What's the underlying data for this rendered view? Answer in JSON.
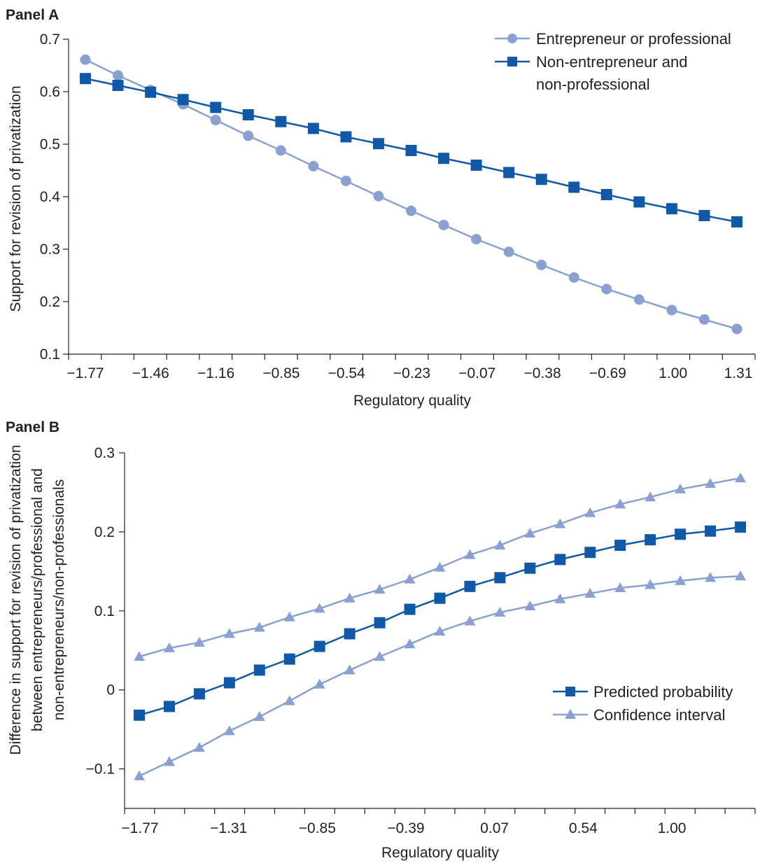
{
  "chart_data": [
    {
      "panel_title": "Panel A",
      "type": "line",
      "xlabel": "Regulatory quality",
      "ylabel": "Support for revision of privatization",
      "x_tick_labels": [
        "−1.77",
        "−1.46",
        "−1.16",
        "−0.85",
        "−0.54",
        "−0.23",
        "−0.07",
        "−0.38",
        "−0.69",
        "1.00",
        "1.31"
      ],
      "y_ticks": [
        0.1,
        0.2,
        0.3,
        0.4,
        0.5,
        0.6,
        0.7
      ],
      "y_tick_labels": [
        "0.1",
        "0.2",
        "0.3",
        "0.4",
        "0.5",
        "0.6",
        "0.7"
      ],
      "ylim": [
        0.1,
        0.7
      ],
      "legend_position": "top-right",
      "series": [
        {
          "name": "Entrepreneur or professional",
          "color": "#8aa0d0",
          "marker": "circle",
          "values": [
            0.661,
            0.631,
            0.603,
            0.576,
            0.546,
            0.516,
            0.488,
            0.458,
            0.43,
            0.401,
            0.373,
            0.346,
            0.319,
            0.295,
            0.27,
            0.246,
            0.224,
            0.204,
            0.184,
            0.166,
            0.148
          ]
        },
        {
          "name": "Non-entrepreneur and non-professional",
          "legend_lines": [
            "Non-entrepreneur and",
            "non-professional"
          ],
          "color": "#1059a8",
          "marker": "square",
          "values": [
            0.625,
            0.612,
            0.599,
            0.585,
            0.57,
            0.556,
            0.543,
            0.53,
            0.514,
            0.501,
            0.488,
            0.473,
            0.46,
            0.446,
            0.433,
            0.418,
            0.404,
            0.39,
            0.377,
            0.364,
            0.352
          ]
        }
      ]
    },
    {
      "panel_title": "Panel B",
      "type": "line",
      "xlabel": "Regulatory quality",
      "ylabel_lines": [
        "Difference in support for revision of privatization",
        "between entrepreneurs/professional and",
        "non-entrepreneurs/non-professionals"
      ],
      "x_tick_labels": [
        "−1.77",
        "−1.31",
        "−0.85",
        "−0.39",
        "0.07",
        "0.54",
        "1.00"
      ],
      "y_ticks": [
        -0.1,
        0.0,
        0.1,
        0.2,
        0.3
      ],
      "y_tick_labels": [
        "−0.1",
        "0",
        "0.1",
        "0.2",
        "0.3"
      ],
      "ylim": [
        -0.15,
        0.3
      ],
      "legend_position": "bottom-right",
      "series": [
        {
          "name": "Confidence interval",
          "color": "#8aa0d0",
          "marker": "triangle",
          "values": [
            0.042,
            0.053,
            0.06,
            0.071,
            0.079,
            0.092,
            0.103,
            0.116,
            0.127,
            0.14,
            0.155,
            0.171,
            0.183,
            0.198,
            0.21,
            0.224,
            0.235,
            0.244,
            0.254,
            0.261,
            0.268
          ]
        },
        {
          "name": "",
          "color": "#8aa0d0",
          "marker": "triangle",
          "values": [
            -0.109,
            -0.091,
            -0.073,
            -0.052,
            -0.034,
            -0.014,
            0.007,
            0.025,
            0.042,
            0.058,
            0.074,
            0.087,
            0.098,
            0.106,
            0.115,
            0.122,
            0.129,
            0.133,
            0.138,
            0.142,
            0.144
          ]
        },
        {
          "name": "Predicted probability",
          "color": "#1059a8",
          "marker": "square",
          "values": [
            -0.032,
            -0.021,
            -0.005,
            0.009,
            0.025,
            0.039,
            0.055,
            0.071,
            0.085,
            0.102,
            0.116,
            0.131,
            0.142,
            0.154,
            0.165,
            0.174,
            0.183,
            0.19,
            0.197,
            0.201,
            0.206
          ]
        }
      ]
    }
  ]
}
